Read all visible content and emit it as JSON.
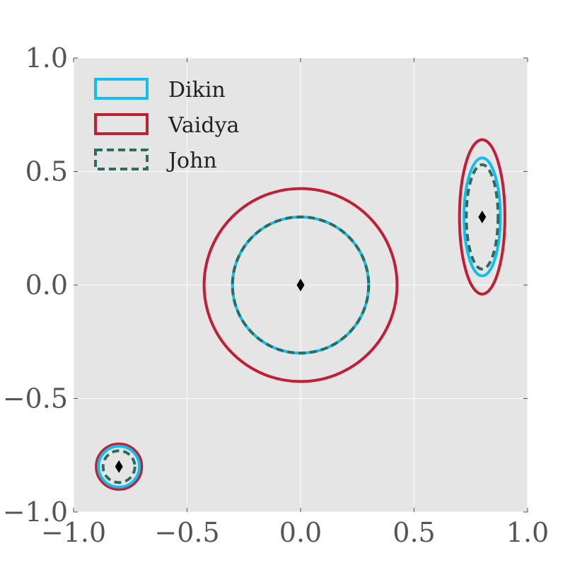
{
  "chart_data": {
    "type": "scatter",
    "title": "",
    "xlabel": "",
    "ylabel": "",
    "xlim": [
      -1.0,
      1.0
    ],
    "ylim": [
      -1.0,
      1.0
    ],
    "grid": true,
    "x_ticks": [
      -1.0,
      -0.5,
      0.0,
      0.5,
      1.0
    ],
    "y_ticks": [
      -1.0,
      -0.5,
      0.0,
      0.5,
      1.0
    ],
    "x_tick_labels": [
      "−1.0",
      "−0.5",
      "0.0",
      "0.5",
      "1.0"
    ],
    "y_tick_labels": [
      "−1.0",
      "−0.5",
      "0.0",
      "0.5",
      "1.0"
    ],
    "legend_position": "top-left",
    "centers": [
      {
        "x": -0.8,
        "y": -0.8
      },
      {
        "x": 0.0,
        "y": 0.0
      },
      {
        "x": 0.8,
        "y": 0.3
      }
    ],
    "series": [
      {
        "name": "Dikin",
        "color": "#10bfef",
        "style": "solid",
        "ellipses": [
          {
            "cx": -0.8,
            "cy": -0.8,
            "rx": 0.09,
            "ry": 0.09
          },
          {
            "cx": 0.0,
            "cy": 0.0,
            "rx": 0.3,
            "ry": 0.3
          },
          {
            "cx": 0.8,
            "cy": 0.3,
            "rx": 0.08,
            "ry": 0.26
          }
        ]
      },
      {
        "name": "Vaidya",
        "color": "#c01f36",
        "style": "solid",
        "ellipses": [
          {
            "cx": -0.8,
            "cy": -0.8,
            "rx": 0.1,
            "ry": 0.1
          },
          {
            "cx": 0.0,
            "cy": 0.0,
            "rx": 0.425,
            "ry": 0.425
          },
          {
            "cx": 0.8,
            "cy": 0.3,
            "rx": 0.1,
            "ry": 0.34
          }
        ]
      },
      {
        "name": "John",
        "color": "#2e6b5e",
        "style": "dashed",
        "ellipses": [
          {
            "cx": -0.8,
            "cy": -0.8,
            "rx": 0.07,
            "ry": 0.07
          },
          {
            "cx": 0.0,
            "cy": 0.0,
            "rx": 0.3,
            "ry": 0.3
          },
          {
            "cx": 0.8,
            "cy": 0.3,
            "rx": 0.07,
            "ry": 0.23
          }
        ]
      }
    ],
    "colors": {
      "plot_background": "#e5e5e5",
      "grid": "#ffffff",
      "marker": "#000000"
    }
  }
}
